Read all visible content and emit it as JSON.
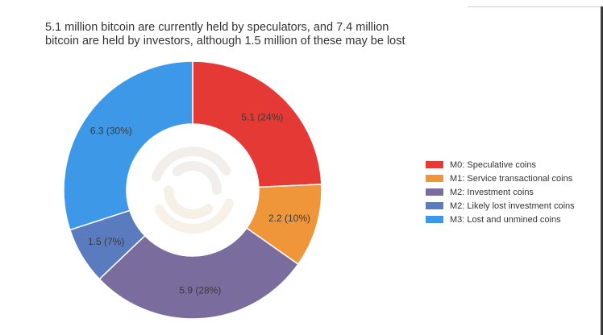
{
  "chart_data": {
    "type": "pie",
    "donut": true,
    "title_lines": [
      "5.1 million bitcoin are currently held by speculators, and 7.4 million",
      "bitcoin are held by investors, although 1.5 million of these may be lost"
    ],
    "categories": [
      "M0: Speculative coins",
      "M1: Service transactional coins",
      "M2: Investment coins",
      "M2: Likely lost investment coins",
      "M3: Lost and unmined coins"
    ],
    "values": [
      5.1,
      2.2,
      5.9,
      1.5,
      6.3
    ],
    "labels": [
      "5.1 (24%)",
      "2.2 (10%)",
      "5.9 (28%)",
      "1.5 (7%)",
      "6.3 (30%)"
    ],
    "colors": [
      "#e53935",
      "#f0963a",
      "#7a6c9c",
      "#5b7bbf",
      "#3d98e8"
    ],
    "legend_position": "right"
  }
}
